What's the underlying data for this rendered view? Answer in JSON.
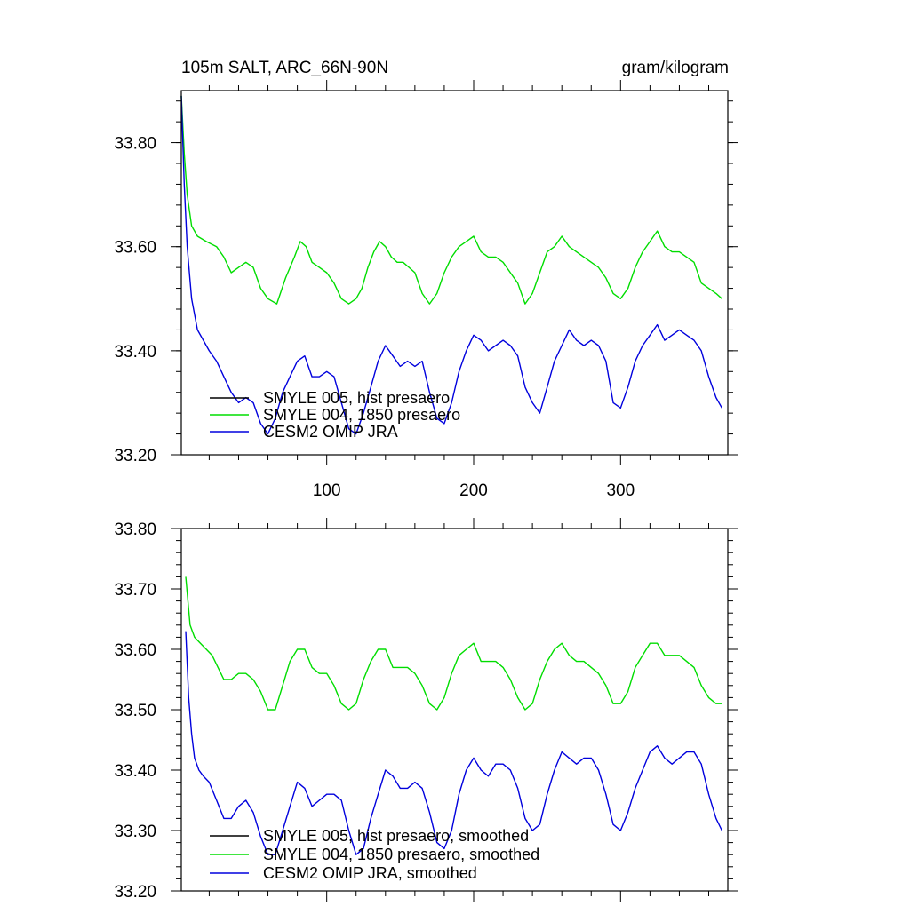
{
  "chart_data": [
    {
      "type": "line",
      "title": "105m SALT, ARC_66N-90N",
      "units": "gram/kilogram",
      "xlim": [
        1,
        373
      ],
      "ylim": [
        33.2,
        33.9
      ],
      "xticks": [
        100,
        200,
        300
      ],
      "xtick_labels": [
        "100",
        "200",
        "300"
      ],
      "yticks": [
        33.2,
        33.4,
        33.6,
        33.8
      ],
      "ytick_labels": [
        "33.20",
        "33.40",
        "33.60",
        "33.80"
      ],
      "legend_placement": "bottom-left",
      "series": [
        {
          "name": "SMYLE 005, hist presaero",
          "color": "#000000",
          "x": [],
          "y": []
        },
        {
          "name": "SMYLE 004, 1850 presaero",
          "color": "#00dd00",
          "x": [
            1,
            3,
            5,
            8,
            12,
            18,
            25,
            30,
            35,
            40,
            45,
            50,
            55,
            60,
            66,
            72,
            78,
            82,
            86,
            90,
            95,
            100,
            105,
            110,
            115,
            120,
            124,
            128,
            132,
            136,
            140,
            144,
            148,
            152,
            156,
            160,
            165,
            170,
            175,
            180,
            185,
            190,
            195,
            200,
            205,
            210,
            215,
            220,
            225,
            230,
            235,
            240,
            245,
            250,
            255,
            260,
            265,
            270,
            275,
            280,
            285,
            290,
            295,
            300,
            305,
            310,
            315,
            320,
            325,
            330,
            335,
            340,
            345,
            350,
            355,
            360,
            365,
            369
          ],
          "y": [
            33.89,
            33.78,
            33.7,
            33.64,
            33.62,
            33.61,
            33.6,
            33.58,
            33.55,
            33.56,
            33.57,
            33.56,
            33.52,
            33.5,
            33.49,
            33.54,
            33.58,
            33.61,
            33.6,
            33.57,
            33.56,
            33.55,
            33.53,
            33.5,
            33.49,
            33.5,
            33.52,
            33.56,
            33.59,
            33.61,
            33.6,
            33.58,
            33.57,
            33.57,
            33.56,
            33.55,
            33.51,
            33.49,
            33.51,
            33.55,
            33.58,
            33.6,
            33.61,
            33.62,
            33.59,
            33.58,
            33.58,
            33.57,
            33.55,
            33.53,
            33.49,
            33.51,
            33.55,
            33.59,
            33.6,
            33.62,
            33.6,
            33.59,
            33.58,
            33.57,
            33.56,
            33.54,
            33.51,
            33.5,
            33.52,
            33.56,
            33.59,
            33.61,
            33.63,
            33.6,
            33.59,
            33.59,
            33.58,
            33.57,
            33.53,
            33.52,
            33.51,
            33.5
          ]
        },
        {
          "name": "CESM2 OMIP JRA",
          "color": "#0000dd",
          "x": [
            1,
            3,
            5,
            8,
            12,
            16,
            20,
            25,
            30,
            35,
            40,
            45,
            50,
            55,
            60,
            65,
            70,
            75,
            80,
            85,
            90,
            95,
            100,
            105,
            110,
            115,
            120,
            125,
            130,
            135,
            140,
            145,
            150,
            155,
            160,
            165,
            170,
            175,
            180,
            185,
            190,
            195,
            200,
            205,
            210,
            215,
            220,
            225,
            230,
            235,
            240,
            245,
            250,
            255,
            260,
            265,
            270,
            275,
            280,
            285,
            290,
            295,
            300,
            305,
            310,
            315,
            320,
            325,
            330,
            335,
            340,
            345,
            350,
            355,
            360,
            365,
            369
          ],
          "y": [
            33.89,
            33.72,
            33.6,
            33.5,
            33.44,
            33.42,
            33.4,
            33.38,
            33.35,
            33.32,
            33.3,
            33.31,
            33.3,
            33.26,
            33.24,
            33.27,
            33.32,
            33.35,
            33.38,
            33.39,
            33.35,
            33.35,
            33.36,
            33.35,
            33.3,
            33.25,
            33.24,
            33.28,
            33.33,
            33.38,
            33.41,
            33.39,
            33.37,
            33.38,
            33.37,
            33.38,
            33.32,
            33.27,
            33.26,
            33.3,
            33.36,
            33.4,
            33.43,
            33.42,
            33.4,
            33.41,
            33.42,
            33.41,
            33.39,
            33.33,
            33.3,
            33.28,
            33.33,
            33.38,
            33.41,
            33.44,
            33.42,
            33.41,
            33.42,
            33.41,
            33.38,
            33.3,
            33.29,
            33.33,
            33.38,
            33.41,
            33.43,
            33.45,
            33.42,
            33.43,
            33.44,
            33.43,
            33.42,
            33.4,
            33.35,
            33.31,
            33.29
          ]
        }
      ]
    },
    {
      "type": "line",
      "title": "",
      "xlim": [
        1,
        373
      ],
      "ylim": [
        33.2,
        33.8
      ],
      "xticks": [
        100,
        200,
        300
      ],
      "xtick_labels": [],
      "yticks": [
        33.2,
        33.3,
        33.4,
        33.5,
        33.6,
        33.7,
        33.8
      ],
      "ytick_labels": [
        "33.20",
        "33.30",
        "33.40",
        "33.50",
        "33.60",
        "33.70",
        "33.80"
      ],
      "legend_placement": "bottom-left",
      "series": [
        {
          "name": "SMYLE 005, hist presaero, smoothed",
          "color": "#000000",
          "x": [],
          "y": []
        },
        {
          "name": "SMYLE 004, 1850 presaero, smoothed",
          "color": "#00dd00",
          "x": [
            4,
            7,
            10,
            14,
            18,
            22,
            26,
            30,
            35,
            40,
            45,
            50,
            55,
            60,
            65,
            70,
            75,
            80,
            85,
            90,
            95,
            100,
            105,
            110,
            115,
            120,
            125,
            130,
            135,
            140,
            145,
            150,
            155,
            160,
            165,
            170,
            175,
            180,
            185,
            190,
            195,
            200,
            205,
            210,
            215,
            220,
            225,
            230,
            235,
            240,
            245,
            250,
            255,
            260,
            265,
            270,
            275,
            280,
            285,
            290,
            295,
            300,
            305,
            310,
            315,
            320,
            325,
            330,
            335,
            340,
            345,
            350,
            355,
            360,
            365,
            369
          ],
          "y": [
            33.72,
            33.64,
            33.62,
            33.61,
            33.6,
            33.59,
            33.57,
            33.55,
            33.55,
            33.56,
            33.56,
            33.55,
            33.53,
            33.5,
            33.5,
            33.54,
            33.58,
            33.6,
            33.6,
            33.57,
            33.56,
            33.56,
            33.54,
            33.51,
            33.5,
            33.51,
            33.55,
            33.58,
            33.6,
            33.6,
            33.57,
            33.57,
            33.57,
            33.56,
            33.54,
            33.51,
            33.5,
            33.52,
            33.56,
            33.59,
            33.6,
            33.61,
            33.58,
            33.58,
            33.58,
            33.57,
            33.55,
            33.52,
            33.5,
            33.51,
            33.55,
            33.58,
            33.6,
            33.61,
            33.59,
            33.58,
            33.58,
            33.57,
            33.56,
            33.54,
            33.51,
            33.51,
            33.53,
            33.57,
            33.59,
            33.61,
            33.61,
            33.59,
            33.59,
            33.59,
            33.58,
            33.57,
            33.54,
            33.52,
            33.51,
            33.51
          ]
        },
        {
          "name": "CESM2 OMIP JRA, smoothed",
          "color": "#0000dd",
          "x": [
            4,
            6,
            8,
            10,
            13,
            16,
            20,
            25,
            30,
            35,
            40,
            45,
            50,
            55,
            60,
            65,
            70,
            75,
            80,
            85,
            90,
            95,
            100,
            105,
            110,
            115,
            120,
            125,
            130,
            135,
            140,
            145,
            150,
            155,
            160,
            165,
            170,
            175,
            180,
            185,
            190,
            195,
            200,
            205,
            210,
            215,
            220,
            225,
            230,
            235,
            240,
            245,
            250,
            255,
            260,
            265,
            270,
            275,
            280,
            285,
            290,
            295,
            300,
            305,
            310,
            315,
            320,
            325,
            330,
            335,
            340,
            345,
            350,
            355,
            360,
            365,
            369
          ],
          "y": [
            33.63,
            33.52,
            33.46,
            33.42,
            33.4,
            33.39,
            33.38,
            33.35,
            33.32,
            33.32,
            33.34,
            33.35,
            33.33,
            33.29,
            33.26,
            33.26,
            33.3,
            33.34,
            33.38,
            33.37,
            33.34,
            33.35,
            33.36,
            33.36,
            33.35,
            33.3,
            33.26,
            33.27,
            33.32,
            33.36,
            33.4,
            33.39,
            33.37,
            33.37,
            33.38,
            33.37,
            33.33,
            33.28,
            33.27,
            33.3,
            33.36,
            33.4,
            33.42,
            33.4,
            33.39,
            33.41,
            33.41,
            33.4,
            33.37,
            33.32,
            33.3,
            33.31,
            33.36,
            33.4,
            33.43,
            33.42,
            33.41,
            33.42,
            33.42,
            33.4,
            33.36,
            33.31,
            33.3,
            33.33,
            33.37,
            33.4,
            33.43,
            33.44,
            33.42,
            33.41,
            33.42,
            33.43,
            33.43,
            33.41,
            33.36,
            33.32,
            33.3
          ]
        }
      ]
    }
  ]
}
